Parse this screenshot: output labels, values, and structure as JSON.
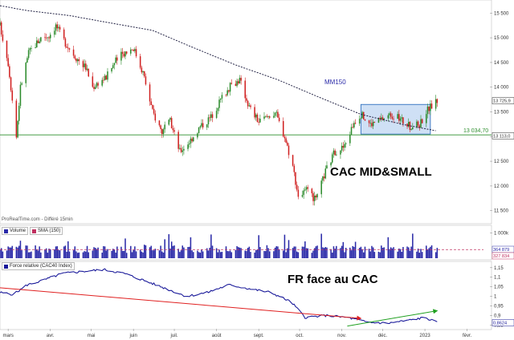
{
  "colors": {
    "up": "#2b8a2b",
    "down": "#d02020",
    "volume": "#2a2aa8",
    "rel_line": "#1a1a9a",
    "red_trend": "#e02020",
    "green_trend": "#20a020",
    "support": "#2f8f2f",
    "consolidation_fill": "#cfe0f5",
    "consolidation_stroke": "#3070c0",
    "mm150": "#222244",
    "sma_volume": "#c03060"
  },
  "annotations": {
    "title": "CAC MID&SMALL",
    "relative_title": "FR face au CAC",
    "mm_label": "MM150",
    "source": "ProRealTime.com - Différé 15min"
  },
  "price_badges": {
    "last": "13 725,9",
    "mm150_value": "13 113,0",
    "support": "13 034,70"
  },
  "volume_badges": {
    "a": "364 879",
    "b": "327 834"
  },
  "rel_badges": {
    "last": "0,8624"
  },
  "legend": {
    "volume": "Volume",
    "sma": "SMA (150)",
    "relative": "Force relative (CAC40 Index)"
  },
  "chart_data": [
    {
      "type": "candlestick",
      "title": "CAC MID&SMALL",
      "x_months": [
        "mars",
        "avr.",
        "mai",
        "juin",
        "juil.",
        "août",
        "sept.",
        "oct.",
        "nov.",
        "déc.",
        "2023",
        "févr."
      ],
      "y_ticks": [
        "11 500",
        "12 000",
        "12 500",
        "13 000",
        "13 500",
        "14 000",
        "14 500",
        "15 000",
        "15 500"
      ],
      "ylim": [
        11300,
        15700
      ],
      "grid": false,
      "support_level": 13034.7,
      "last_value": 13725.9,
      "mm150_last": 13113.0,
      "anchors": [
        [
          "2022-02-23",
          15250
        ],
        [
          "2022-03-01",
          14500
        ],
        [
          "2022-03-07",
          13000
        ],
        [
          "2022-03-10",
          14000
        ],
        [
          "2022-03-16",
          14700
        ],
        [
          "2022-03-25",
          15000
        ],
        [
          "2022-03-31",
          15050
        ],
        [
          "2022-04-05",
          15250
        ],
        [
          "2022-04-12",
          14900
        ],
        [
          "2022-04-20",
          14600
        ],
        [
          "2022-04-27",
          14400
        ],
        [
          "2022-05-02",
          14000
        ],
        [
          "2022-05-06",
          14100
        ],
        [
          "2022-05-12",
          14200
        ],
        [
          "2022-05-18",
          14500
        ],
        [
          "2022-05-25",
          14700
        ],
        [
          "2022-06-01",
          14800
        ],
        [
          "2022-06-08",
          14300
        ],
        [
          "2022-06-15",
          13500
        ],
        [
          "2022-06-22",
          13100
        ],
        [
          "2022-06-28",
          13300
        ],
        [
          "2022-07-05",
          12700
        ],
        [
          "2022-07-12",
          12900
        ],
        [
          "2022-07-20",
          13200
        ],
        [
          "2022-07-28",
          13400
        ],
        [
          "2022-08-05",
          13800
        ],
        [
          "2022-08-12",
          14050
        ],
        [
          "2022-08-18",
          14150
        ],
        [
          "2022-08-25",
          13600
        ],
        [
          "2022-09-01",
          13300
        ],
        [
          "2022-09-07",
          13400
        ],
        [
          "2022-09-13",
          13500
        ],
        [
          "2022-09-20",
          13000
        ],
        [
          "2022-09-26",
          12400
        ],
        [
          "2022-09-30",
          11800
        ],
        [
          "2022-10-06",
          11900
        ],
        [
          "2022-10-13",
          11700
        ],
        [
          "2022-10-20",
          12300
        ],
        [
          "2022-10-27",
          12700
        ],
        [
          "2022-11-03",
          12800
        ],
        [
          "2022-11-10",
          13300
        ],
        [
          "2022-11-15",
          13450
        ],
        [
          "2022-11-22",
          13250
        ],
        [
          "2022-11-30",
          13350
        ],
        [
          "2022-12-07",
          13450
        ],
        [
          "2022-12-14",
          13350
        ],
        [
          "2022-12-21",
          13200
        ],
        [
          "2022-12-28",
          13250
        ],
        [
          "2023-01-03",
          13550
        ],
        [
          "2023-01-10",
          13725.9
        ]
      ],
      "mm150": [
        [
          "2022-02-23",
          15650
        ],
        [
          "2022-03-15",
          15550
        ],
        [
          "2022-04-15",
          15450
        ],
        [
          "2022-05-15",
          15300
        ],
        [
          "2022-06-15",
          15150
        ],
        [
          "2022-07-15",
          14800
        ],
        [
          "2022-08-15",
          14450
        ],
        [
          "2022-09-15",
          14150
        ],
        [
          "2022-10-15",
          13800
        ],
        [
          "2022-11-15",
          13450
        ],
        [
          "2022-12-15",
          13250
        ],
        [
          "2023-01-10",
          13113
        ]
      ],
      "consolidation_zone": {
        "x": [
          "2022-11-15",
          "2023-01-05"
        ],
        "y": [
          13050,
          13650
        ]
      }
    },
    {
      "type": "bar",
      "title": "Volume",
      "y_ticks": [
        "1 000k"
      ],
      "ylim": [
        0,
        1200000
      ],
      "sma_level": 340000,
      "typical_volume": 380000
    },
    {
      "type": "line",
      "title": "Force relative (CAC40 Index)",
      "y_ticks": [
        "1,15",
        "1,1",
        "1,05",
        "1",
        "0,95",
        "0,9",
        "0,85"
      ],
      "ylim": [
        0.835,
        1.17
      ],
      "last_value": 0.8624,
      "anchors": [
        [
          "2022-02-23",
          1.02
        ],
        [
          "2022-03-05",
          1.01
        ],
        [
          "2022-03-15",
          1.06
        ],
        [
          "2022-03-25",
          1.08
        ],
        [
          "2022-04-10",
          1.12
        ],
        [
          "2022-04-25",
          1.13
        ],
        [
          "2022-05-10",
          1.14
        ],
        [
          "2022-05-25",
          1.12
        ],
        [
          "2022-06-10",
          1.08
        ],
        [
          "2022-06-25",
          1.04
        ],
        [
          "2022-07-10",
          1.0
        ],
        [
          "2022-07-25",
          1.02
        ],
        [
          "2022-08-10",
          1.06
        ],
        [
          "2022-08-25",
          1.04
        ],
        [
          "2022-09-10",
          1.02
        ],
        [
          "2022-09-25",
          0.97
        ],
        [
          "2022-10-05",
          0.89
        ],
        [
          "2022-10-20",
          0.9
        ],
        [
          "2022-11-05",
          0.89
        ],
        [
          "2022-11-20",
          0.865
        ],
        [
          "2022-12-05",
          0.86
        ],
        [
          "2022-12-20",
          0.875
        ],
        [
          "2023-01-01",
          0.89
        ],
        [
          "2023-01-10",
          0.8624
        ]
      ],
      "trend_red": [
        [
          "2022-02-23",
          1.045
        ],
        [
          "2022-11-15",
          0.885
        ]
      ],
      "trend_green": [
        [
          "2022-11-05",
          0.845
        ],
        [
          "2023-01-10",
          0.925
        ]
      ]
    }
  ]
}
